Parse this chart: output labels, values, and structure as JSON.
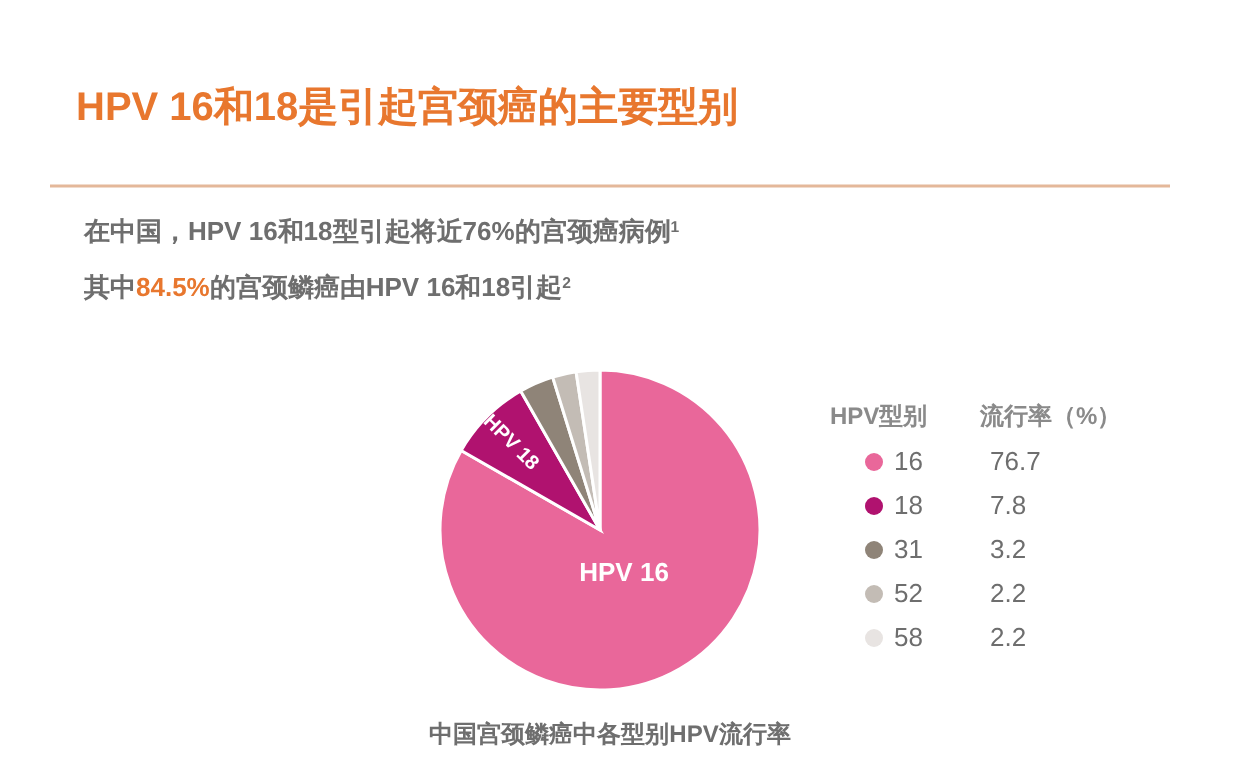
{
  "chart_data": {
    "type": "pie",
    "title": "HPV 16和18是引起宫颈癌的主要型别",
    "subtitle": "在中国，HPV 16和18型引起将近76%的宫颈癌病例$^{1}$",
    "categories": [
      "16",
      "18",
      "31",
      "52",
      "58"
    ],
    "values": [
      76.7,
      7.8,
      3.2,
      2.2,
      2.2
    ],
    "colors": [
      "#e9679a",
      "#b0126f",
      "#8f8478",
      "#c3bcb5",
      "#e8e4e2"
    ],
    "legend": "right",
    "legend_title": "HPV型别",
    "ylabel": "流行率（%）",
    "data_labels": true,
    "annotations": [
      "其中84.5%的宫颈鳞癌由HPV 16和18引起$^{2}$",
      "中国宫颈鳞癌中各型别HPV流行率",
      {
        "text": "HPV 16",
        "x": "16"
      },
      {
        "text": "HPV 18",
        "x": "18"
      }
    ]
  }
}
